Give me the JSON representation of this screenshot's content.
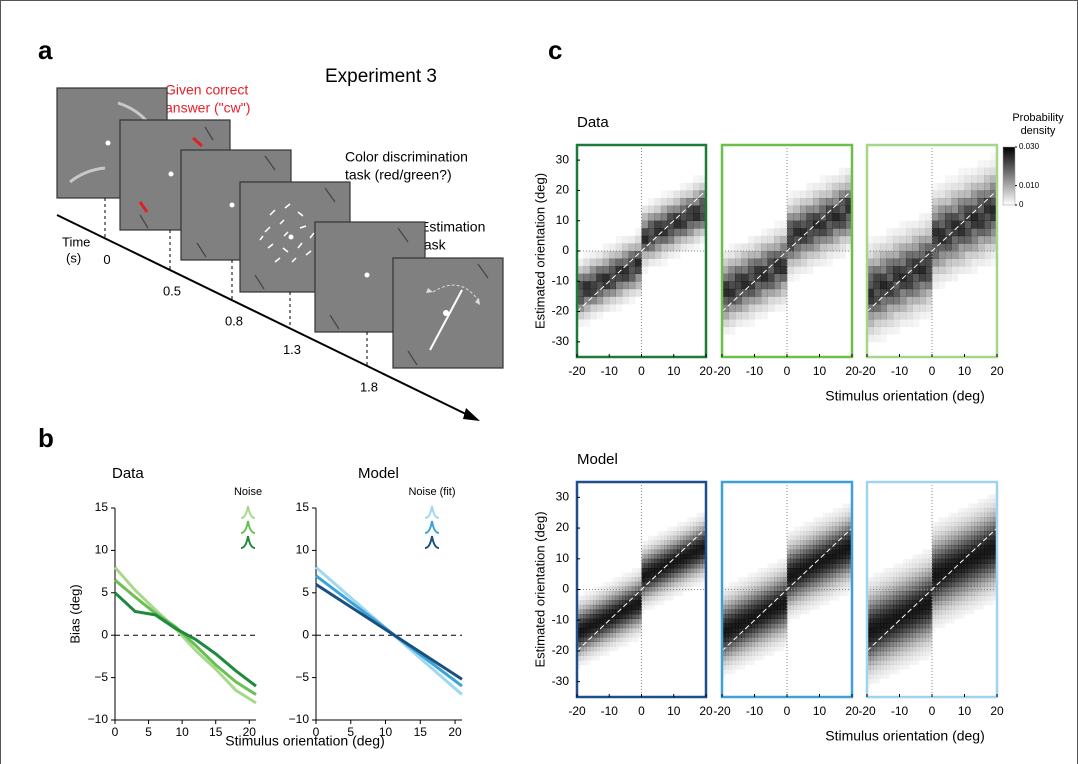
{
  "figure_labels": [
    "a",
    "b",
    "c"
  ],
  "panel_a": {
    "title": "Experiment 3",
    "feedback_label": [
      "Given correct",
      "answer (\"cw\")"
    ],
    "color_task_label": [
      "Color discrimination",
      "task (red/green?)"
    ],
    "estimation_label": [
      "Estimation",
      "task"
    ],
    "time_label": [
      "Time",
      "(s)"
    ],
    "time_ticks": [
      0,
      0.5,
      0.8,
      1.3,
      1.8
    ]
  },
  "chart_data": [
    {
      "type": "line",
      "title": "Data",
      "legend_title": "Noise",
      "ylabel": "Bias (deg)",
      "xlabel": "Stimulus orientation (deg)",
      "x": [
        0,
        3,
        6,
        9,
        12,
        15,
        18,
        21
      ],
      "series": [
        {
          "color": "#a8d98b",
          "values": [
            8,
            5.3,
            3,
            0.8,
            -1.8,
            -4,
            -6.5,
            -8
          ]
        },
        {
          "color": "#6abf55",
          "values": [
            6.5,
            4.5,
            2.6,
            1,
            -1.2,
            -3.5,
            -5.5,
            -7
          ]
        },
        {
          "color": "#1e8a3e",
          "values": [
            5,
            2.8,
            2.4,
            0.8,
            -0.5,
            -2.2,
            -4.2,
            -6
          ]
        }
      ],
      "xlim": [
        0,
        21
      ],
      "xticks": [
        0,
        5,
        10,
        15,
        20
      ],
      "ylim": [
        -10,
        15
      ],
      "yticks": [
        {
          "value": -10,
          "label": "−10"
        },
        {
          "value": -5,
          "label": "−5"
        },
        0,
        5,
        10,
        15
      ],
      "zero_line": true
    },
    {
      "type": "line",
      "title": "Model",
      "legend_title": "Noise (fit)",
      "x": [
        0,
        21
      ],
      "series": [
        {
          "color": "#9fd8f2",
          "values": [
            8,
            -7
          ]
        },
        {
          "color": "#3aa3d8",
          "values": [
            7,
            -6
          ]
        },
        {
          "color": "#1b4f7e",
          "values": [
            6,
            -5.2
          ]
        }
      ],
      "xlim": [
        0,
        21
      ],
      "xticks": [
        0,
        5,
        10,
        15,
        20
      ],
      "ylim": [
        -10,
        15
      ],
      "yticks": [
        {
          "value": -10,
          "label": "−10"
        },
        {
          "value": -5,
          "label": "−5"
        },
        0,
        5,
        10,
        15
      ],
      "zero_line": true
    },
    {
      "type": "density",
      "title": "Data",
      "ylabel": "Estimated orientation (deg)",
      "xlabel": "Stimulus orientation (deg)",
      "panels": [
        {
          "color": "#1e7a3a"
        },
        {
          "color": "#6cbf4a"
        },
        {
          "color": "#a5d68a"
        }
      ],
      "xlim": [
        -20,
        20
      ],
      "xticks": [
        -20,
        -10,
        0,
        10,
        20
      ],
      "ylim": [
        -35,
        35
      ],
      "yticks": [
        -30,
        -20,
        -10,
        0,
        10,
        20,
        30
      ],
      "colorbar": {
        "title": [
          "Probability",
          "density"
        ],
        "lim": [
          0,
          0.03
        ],
        "ticks": [
          0,
          {
            "value": 0.01,
            "label": "0.010"
          },
          {
            "value": 0.03,
            "label": "0.030"
          }
        ]
      }
    },
    {
      "type": "density",
      "title": "Model",
      "ylabel": "Estimated orientation (deg)",
      "xlabel": "Stimulus orientation (deg)",
      "panels": [
        {
          "color": "#1f4e8c"
        },
        {
          "color": "#3fa0d6"
        },
        {
          "color": "#9fd3ef"
        }
      ],
      "xlim": [
        -20,
        20
      ],
      "xticks": [
        -20,
        -10,
        0,
        10,
        20
      ],
      "ylim": [
        -35,
        35
      ],
      "yticks": [
        -30,
        -20,
        -10,
        0,
        10,
        20,
        30
      ]
    }
  ]
}
